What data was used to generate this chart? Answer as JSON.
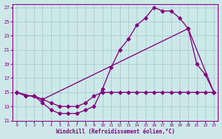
{
  "xlabel": "Windchill (Refroidissement éolien,°C)",
  "background_color": "#cce8e8",
  "grid_color": "#aacccc",
  "line_color": "#800080",
  "xlim": [
    -0.5,
    23.5
  ],
  "ylim": [
    11,
    27.5
  ],
  "yticks": [
    11,
    13,
    15,
    17,
    19,
    21,
    23,
    25,
    27
  ],
  "xticks": [
    0,
    1,
    2,
    3,
    4,
    5,
    6,
    7,
    8,
    9,
    10,
    11,
    12,
    13,
    14,
    15,
    16,
    17,
    18,
    19,
    20,
    21,
    22,
    23
  ],
  "curve1_x": [
    0,
    1,
    2,
    3,
    4,
    5,
    6,
    7,
    8,
    9,
    10,
    11,
    12,
    13,
    14,
    15,
    16,
    17,
    18,
    19,
    20,
    21,
    22,
    23
  ],
  "curve1_y": [
    15,
    14.5,
    14.5,
    13.5,
    12.5,
    12,
    12,
    12,
    12.5,
    13,
    15.5,
    18.5,
    21,
    22.5,
    24.5,
    25.5,
    27,
    26.5,
    26.5,
    25.5,
    24,
    19,
    17.5,
    15
  ],
  "curve2_x": [
    0,
    3,
    20,
    23
  ],
  "curve2_y": [
    15,
    14,
    24,
    15
  ],
  "curve3_x": [
    0,
    1,
    2,
    3,
    4,
    5,
    6,
    7,
    8,
    9,
    10,
    11,
    12,
    13,
    14,
    15,
    16,
    17,
    18,
    19,
    20,
    21,
    22,
    23
  ],
  "curve3_y": [
    15,
    14.5,
    14.5,
    14,
    13.5,
    13,
    13,
    13,
    13.5,
    14.5,
    15,
    15,
    15,
    15,
    15,
    15,
    15,
    15,
    15,
    15,
    15,
    15,
    15,
    15
  ],
  "marker": "D",
  "markersize": 2.5,
  "linewidth": 1.0
}
